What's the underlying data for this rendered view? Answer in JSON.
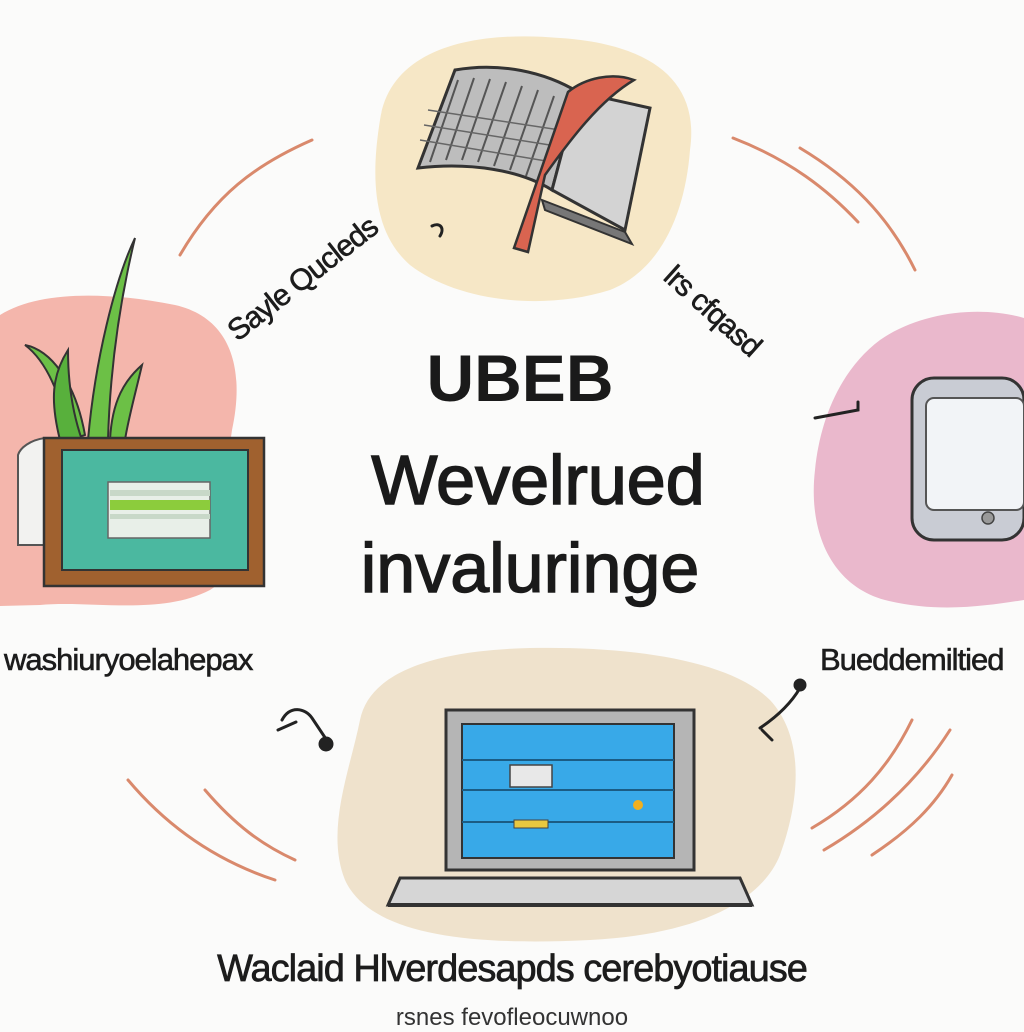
{
  "title": {
    "line1": "UBEB",
    "line2": "Wevelrued",
    "line3": "invaluringe"
  },
  "labels": {
    "top_left_arc": "Sayle Qucleds",
    "top_right_arc": "lrs cfqasd",
    "left": "washiuryoelahepax",
    "right": "Bueddemiltied",
    "bottom_line1": "Waclaid Hlverdesapds cerebyotiause",
    "bottom_line2": "rsnes fevofleocuwnoo"
  },
  "colors": {
    "background": "#fbfbfa",
    "blob_top": "#f6e7c6",
    "blob_left": "#f4b6ac",
    "blob_right": "#eab8cc",
    "blob_bottom": "#efe2cc",
    "arc": "#d9896c",
    "screen_blue": "#38a9e8",
    "frame_brown": "#a0612f",
    "panel_teal": "#4bb8a0",
    "leaf_green": "#6cc046",
    "bookmark_red": "#d96450"
  },
  "icons": [
    "open-book-icon",
    "plant-frame-icon",
    "smartphone-icon",
    "laptop-icon",
    "connector-icon"
  ]
}
